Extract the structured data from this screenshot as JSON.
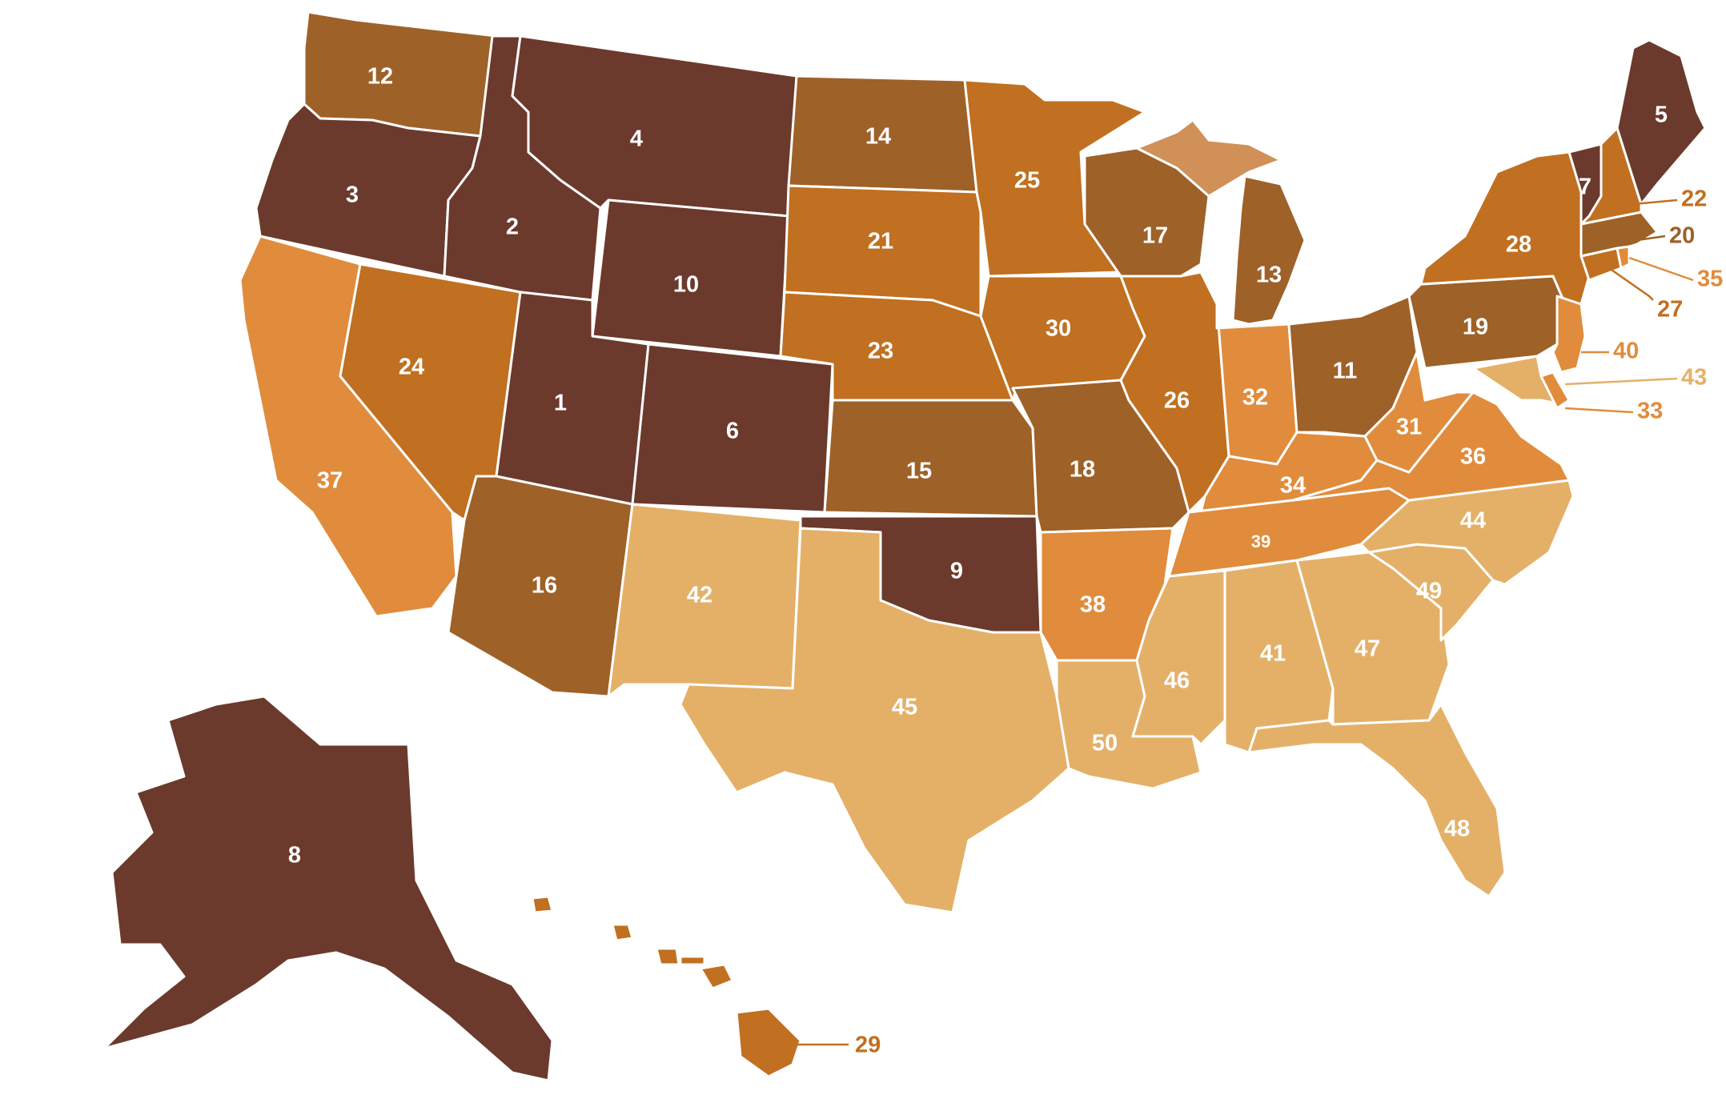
{
  "palette": {
    "tier1": "#6b3a2c",
    "tier2": "#9e6128",
    "tier3": "#c07020",
    "tier4": "#e08c3c",
    "tier5": "#e4b068",
    "michigan_up": "#d09058"
  },
  "states": [
    {
      "id": "UT",
      "rank": "1",
      "tier": "tier1"
    },
    {
      "id": "ID",
      "rank": "2",
      "tier": "tier1"
    },
    {
      "id": "OR",
      "rank": "3",
      "tier": "tier1"
    },
    {
      "id": "MT",
      "rank": "4",
      "tier": "tier1"
    },
    {
      "id": "ME",
      "rank": "5",
      "tier": "tier1"
    },
    {
      "id": "CO",
      "rank": "6",
      "tier": "tier1"
    },
    {
      "id": "VT",
      "rank": "7",
      "tier": "tier1"
    },
    {
      "id": "AK",
      "rank": "8",
      "tier": "tier1"
    },
    {
      "id": "OK",
      "rank": "9",
      "tier": "tier1"
    },
    {
      "id": "WY",
      "rank": "10",
      "tier": "tier1"
    },
    {
      "id": "OH",
      "rank": "11",
      "tier": "tier2"
    },
    {
      "id": "WA",
      "rank": "12",
      "tier": "tier2"
    },
    {
      "id": "MI",
      "rank": "13",
      "tier": "tier2"
    },
    {
      "id": "ND",
      "rank": "14",
      "tier": "tier2"
    },
    {
      "id": "KS",
      "rank": "15",
      "tier": "tier2"
    },
    {
      "id": "AZ",
      "rank": "16",
      "tier": "tier2"
    },
    {
      "id": "WI",
      "rank": "17",
      "tier": "tier2"
    },
    {
      "id": "MO",
      "rank": "18",
      "tier": "tier2"
    },
    {
      "id": "PA",
      "rank": "19",
      "tier": "tier2"
    },
    {
      "id": "MA",
      "rank": "20",
      "tier": "tier2"
    },
    {
      "id": "SD",
      "rank": "21",
      "tier": "tier3"
    },
    {
      "id": "NH",
      "rank": "22",
      "tier": "tier3"
    },
    {
      "id": "NE",
      "rank": "23",
      "tier": "tier3"
    },
    {
      "id": "NV",
      "rank": "24",
      "tier": "tier3"
    },
    {
      "id": "MN",
      "rank": "25",
      "tier": "tier3"
    },
    {
      "id": "IL",
      "rank": "26",
      "tier": "tier3"
    },
    {
      "id": "CT",
      "rank": "27",
      "tier": "tier3"
    },
    {
      "id": "NY",
      "rank": "28",
      "tier": "tier3"
    },
    {
      "id": "HI",
      "rank": "29",
      "tier": "tier3"
    },
    {
      "id": "IA",
      "rank": "30",
      "tier": "tier3"
    },
    {
      "id": "WV",
      "rank": "31",
      "tier": "tier4"
    },
    {
      "id": "IN",
      "rank": "32",
      "tier": "tier4"
    },
    {
      "id": "DE",
      "rank": "33",
      "tier": "tier4"
    },
    {
      "id": "KY",
      "rank": "34",
      "tier": "tier4"
    },
    {
      "id": "RI",
      "rank": "35",
      "tier": "tier4"
    },
    {
      "id": "VA",
      "rank": "36",
      "tier": "tier4"
    },
    {
      "id": "CA",
      "rank": "37",
      "tier": "tier4"
    },
    {
      "id": "AR",
      "rank": "38",
      "tier": "tier4"
    },
    {
      "id": "TN",
      "rank": "39",
      "tier": "tier4"
    },
    {
      "id": "NJ",
      "rank": "40",
      "tier": "tier4"
    },
    {
      "id": "AL",
      "rank": "41",
      "tier": "tier5"
    },
    {
      "id": "NM",
      "rank": "42",
      "tier": "tier5"
    },
    {
      "id": "MD",
      "rank": "43",
      "tier": "tier5"
    },
    {
      "id": "NC",
      "rank": "44",
      "tier": "tier5"
    },
    {
      "id": "TX",
      "rank": "45",
      "tier": "tier5"
    },
    {
      "id": "MS",
      "rank": "46",
      "tier": "tier5"
    },
    {
      "id": "GA",
      "rank": "47",
      "tier": "tier5"
    },
    {
      "id": "FL",
      "rank": "48",
      "tier": "tier5"
    },
    {
      "id": "SC",
      "rank": "49",
      "tier": "tier5"
    },
    {
      "id": "LA",
      "rank": "50",
      "tier": "tier5"
    }
  ]
}
